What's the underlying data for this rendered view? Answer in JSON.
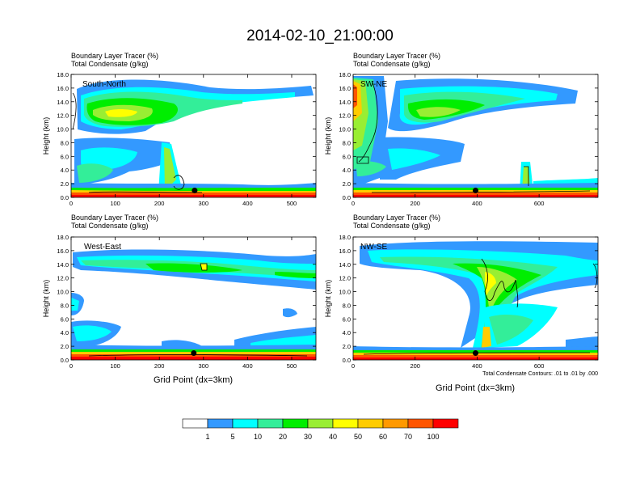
{
  "figure_title": "2014-02-10_21:00:00",
  "shared": {
    "header_line1": "Boundary Layer Tracer   (%)",
    "header_line2": "Total Condensate   (g/kg)",
    "ylabel": "Height (km)",
    "xlabel": "Grid Point (dx=3km)",
    "contour_note": "Total Condensate Contours: .01 to .01 by .000",
    "y_ticks": [
      "0.0",
      "2.0",
      "4.0",
      "6.0",
      "8.0",
      "10.0",
      "12.0",
      "14.0",
      "16.0",
      "18.0"
    ]
  },
  "colorbar": {
    "colors": [
      "#ffffff",
      "#3399ff",
      "#00ffff",
      "#33ee99",
      "#00ee00",
      "#99ee33",
      "#ffff00",
      "#ffcc00",
      "#ff9900",
      "#ff5500",
      "#ff0000"
    ],
    "labels": [
      "1",
      "5",
      "10",
      "20",
      "30",
      "40",
      "50",
      "60",
      "70",
      "100"
    ]
  },
  "chart_data": [
    {
      "type": "heatmap",
      "name": "South-North",
      "x_ticks": [
        "0",
        "100",
        "200",
        "300",
        "400",
        "500"
      ],
      "xlim": [
        0,
        555
      ],
      "ylim": [
        0,
        18
      ],
      "marker_x": 280,
      "marker_y": 1.0
    },
    {
      "type": "heatmap",
      "name": "SW-NE",
      "x_ticks": [
        "0",
        "200",
        "400",
        "600"
      ],
      "xlim": [
        0,
        790
      ],
      "ylim": [
        0,
        18
      ],
      "marker_x": 395,
      "marker_y": 1.0
    },
    {
      "type": "heatmap",
      "name": "West-East",
      "x_ticks": [
        "0",
        "100",
        "200",
        "300",
        "400",
        "500"
      ],
      "xlim": [
        0,
        555
      ],
      "ylim": [
        0,
        18
      ],
      "marker_x": 278,
      "marker_y": 1.0
    },
    {
      "type": "heatmap",
      "name": "NW-SE",
      "x_ticks": [
        "0",
        "200",
        "400",
        "600"
      ],
      "xlim": [
        0,
        790
      ],
      "ylim": [
        0,
        18
      ],
      "marker_x": 395,
      "marker_y": 1.0
    }
  ]
}
